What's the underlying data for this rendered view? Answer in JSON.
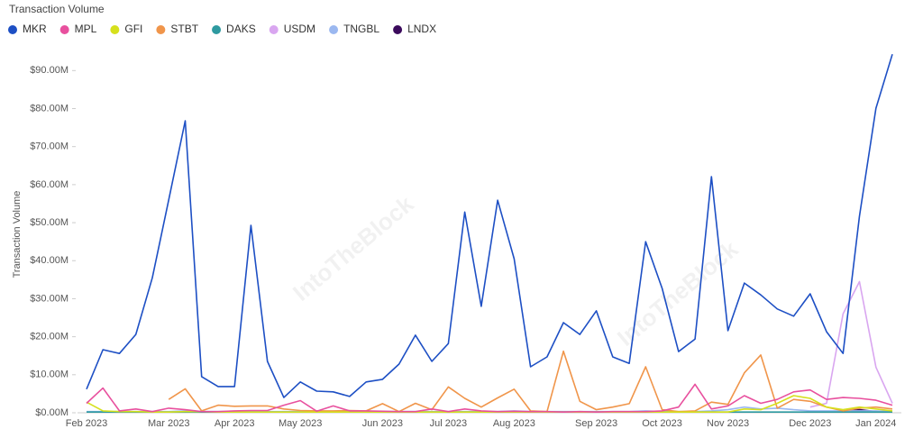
{
  "chart_data": {
    "type": "line",
    "title": "Transaction Volume",
    "y_label": "Transaction Volume",
    "watermark": "IntoTheBlock",
    "categories": [
      "Feb 2023",
      null,
      null,
      null,
      null,
      "Mar 2023",
      null,
      null,
      null,
      "Apr 2023",
      null,
      null,
      null,
      "May 2023",
      null,
      null,
      null,
      null,
      "Jun 2023",
      null,
      null,
      null,
      "Jul 2023",
      null,
      null,
      null,
      "Aug 2023",
      null,
      null,
      null,
      null,
      "Sep 2023",
      null,
      null,
      null,
      "Oct 2023",
      null,
      null,
      null,
      "Nov 2023",
      null,
      null,
      null,
      null,
      "Dec 2023",
      null,
      null,
      null,
      "Jan 2024",
      null
    ],
    "ylim": [
      0,
      96
    ],
    "yticks": [
      {
        "value": 0,
        "label": "$0.00M"
      },
      {
        "value": 10,
        "label": "$10.00M"
      },
      {
        "value": 20,
        "label": "$20.00M"
      },
      {
        "value": 30,
        "label": "$30.00M"
      },
      {
        "value": 40,
        "label": "$40.00M"
      },
      {
        "value": 50,
        "label": "$50.00M"
      },
      {
        "value": 60,
        "label": "$60.00M"
      },
      {
        "value": 70,
        "label": "$70.00M"
      },
      {
        "value": 80,
        "label": "$80.00M"
      },
      {
        "value": 90,
        "label": "$90.00M"
      }
    ],
    "grid": false,
    "series": [
      {
        "name": "MKR",
        "color": "#1d4fc4",
        "values": [
          6.2,
          16.6,
          15.6,
          20.6,
          35.5,
          56,
          76.8,
          9.5,
          6.9,
          6.9,
          49.3,
          13.5,
          4.0,
          8.1,
          5.7,
          5.5,
          4.3,
          8.1,
          8.8,
          12.8,
          20.4,
          13.5,
          18.2,
          52.8,
          28.0,
          55.9,
          40.5,
          12.1,
          14.7,
          23.7,
          20.6,
          26.8,
          14.7,
          13.0,
          45.0,
          32.7,
          16.1,
          19.4,
          62.1,
          21.6,
          34.1,
          31.0,
          27.3,
          25.4,
          31.3,
          21.3,
          15.6,
          51.7,
          80.1,
          94.3
        ]
      },
      {
        "name": "MPL",
        "color": "#e8509e",
        "values": [
          2.5,
          6.5,
          0.5,
          1.0,
          0.3,
          1.2,
          0.8,
          0.3,
          0.3,
          0.5,
          0.6,
          0.6,
          2.0,
          3.2,
          0.4,
          1.8,
          0.5,
          0.5,
          0.4,
          0.3,
          0.3,
          1.0,
          0.3,
          1.0,
          0.5,
          0.3,
          0.4,
          0.3,
          0.3,
          0.2,
          0.3,
          0.2,
          0.3,
          0.3,
          0.3,
          0.5,
          1.5,
          7.5,
          1.0,
          1.8,
          4.5,
          2.5,
          3.5,
          5.5,
          6.0,
          3.5,
          4.0,
          3.8,
          3.3,
          2.0
        ]
      },
      {
        "name": "GFI",
        "color": "#d6e01c",
        "values": [
          2.8,
          0.5,
          0.3,
          0.3,
          0.2,
          0.2,
          0.3,
          0.3,
          0.2,
          0.2,
          0.2,
          0.2,
          0.2,
          0.2,
          0.2,
          0.2,
          0.2,
          0.2,
          0.2,
          0.2,
          0.2,
          0.2,
          0.2,
          0.2,
          0.2,
          0.2,
          0.2,
          0.2,
          0.2,
          0.2,
          0.2,
          0.2,
          0.2,
          0.2,
          0.2,
          0.2,
          0.2,
          0.2,
          0.2,
          0.2,
          1.0,
          0.8,
          2.5,
          4.5,
          3.8,
          1.5,
          0.8,
          1.5,
          1.0,
          0.5
        ]
      },
      {
        "name": "STBT",
        "color": "#f0954a",
        "values": [
          null,
          null,
          null,
          null,
          null,
          3.5,
          6.3,
          0.5,
          2.0,
          1.7,
          1.8,
          1.8,
          1.0,
          0.6,
          0.5,
          0.5,
          0.6,
          0.5,
          2.4,
          0.3,
          2.5,
          0.8,
          6.8,
          3.8,
          1.5,
          3.9,
          6.2,
          0.5,
          0.3,
          16.2,
          3.0,
          0.8,
          1.5,
          2.4,
          12.1,
          0.8,
          0.3,
          0.5,
          2.8,
          2.2,
          10.5,
          15.2,
          1.2,
          3.5,
          3.0,
          1.5,
          0.5,
          1.2,
          1.5,
          1.0
        ]
      },
      {
        "name": "DAKS",
        "color": "#2e9aa0",
        "values": [
          0.2,
          0.2,
          0.2,
          0.2,
          0.2,
          0.2,
          0.2,
          0.2,
          0.2,
          0.2,
          0.2,
          0.2,
          0.2,
          0.2,
          0.2,
          0.2,
          0.2,
          0.2,
          0.2,
          0.2,
          0.2,
          0.2,
          0.2,
          0.2,
          0.2,
          0.2,
          0.2,
          0.2,
          0.2,
          0.2,
          0.2,
          0.2,
          0.2,
          0.2,
          0.2,
          0.2,
          0.2,
          0.2,
          0.2,
          0.2,
          0.2,
          0.2,
          0.2,
          0.2,
          0.2,
          0.2,
          0.2,
          0.2,
          0.2,
          0.2
        ]
      },
      {
        "name": "USDM",
        "color": "#d9a6f0",
        "values": [
          null,
          null,
          null,
          null,
          null,
          null,
          null,
          null,
          null,
          null,
          null,
          null,
          null,
          null,
          null,
          null,
          null,
          null,
          null,
          null,
          null,
          null,
          null,
          null,
          null,
          null,
          null,
          null,
          null,
          null,
          null,
          null,
          null,
          null,
          null,
          null,
          null,
          null,
          null,
          null,
          null,
          null,
          null,
          null,
          1.5,
          2.5,
          26,
          34.5,
          12,
          2.5
        ]
      },
      {
        "name": "TNGBL",
        "color": "#9bb8f0",
        "values": [
          0.3,
          0.3,
          0.3,
          0.3,
          0.3,
          0.3,
          0.5,
          0.3,
          0.3,
          0.3,
          0.3,
          0.3,
          0.3,
          0.3,
          0.3,
          0.3,
          0.3,
          0.3,
          0.3,
          0.3,
          0.3,
          0.3,
          0.3,
          0.3,
          0.3,
          0.3,
          0.5,
          0.3,
          0.3,
          0.3,
          0.3,
          0.3,
          0.3,
          0.3,
          0.5,
          0.3,
          0.3,
          0.3,
          0.5,
          0.8,
          1.5,
          1.0,
          1.2,
          0.8,
          0.5,
          0.5,
          0.5,
          0.5,
          0.5,
          0.3
        ]
      },
      {
        "name": "LNDX",
        "color": "#3b0a5c",
        "values": [
          null,
          null,
          null,
          null,
          null,
          null,
          null,
          null,
          null,
          null,
          null,
          null,
          null,
          null,
          null,
          null,
          null,
          null,
          null,
          null,
          null,
          null,
          null,
          null,
          null,
          null,
          null,
          null,
          null,
          null,
          null,
          null,
          null,
          null,
          null,
          null,
          null,
          null,
          null,
          null,
          null,
          null,
          null,
          null,
          null,
          null,
          0.3,
          0.8,
          0.3,
          0.2
        ]
      }
    ]
  }
}
